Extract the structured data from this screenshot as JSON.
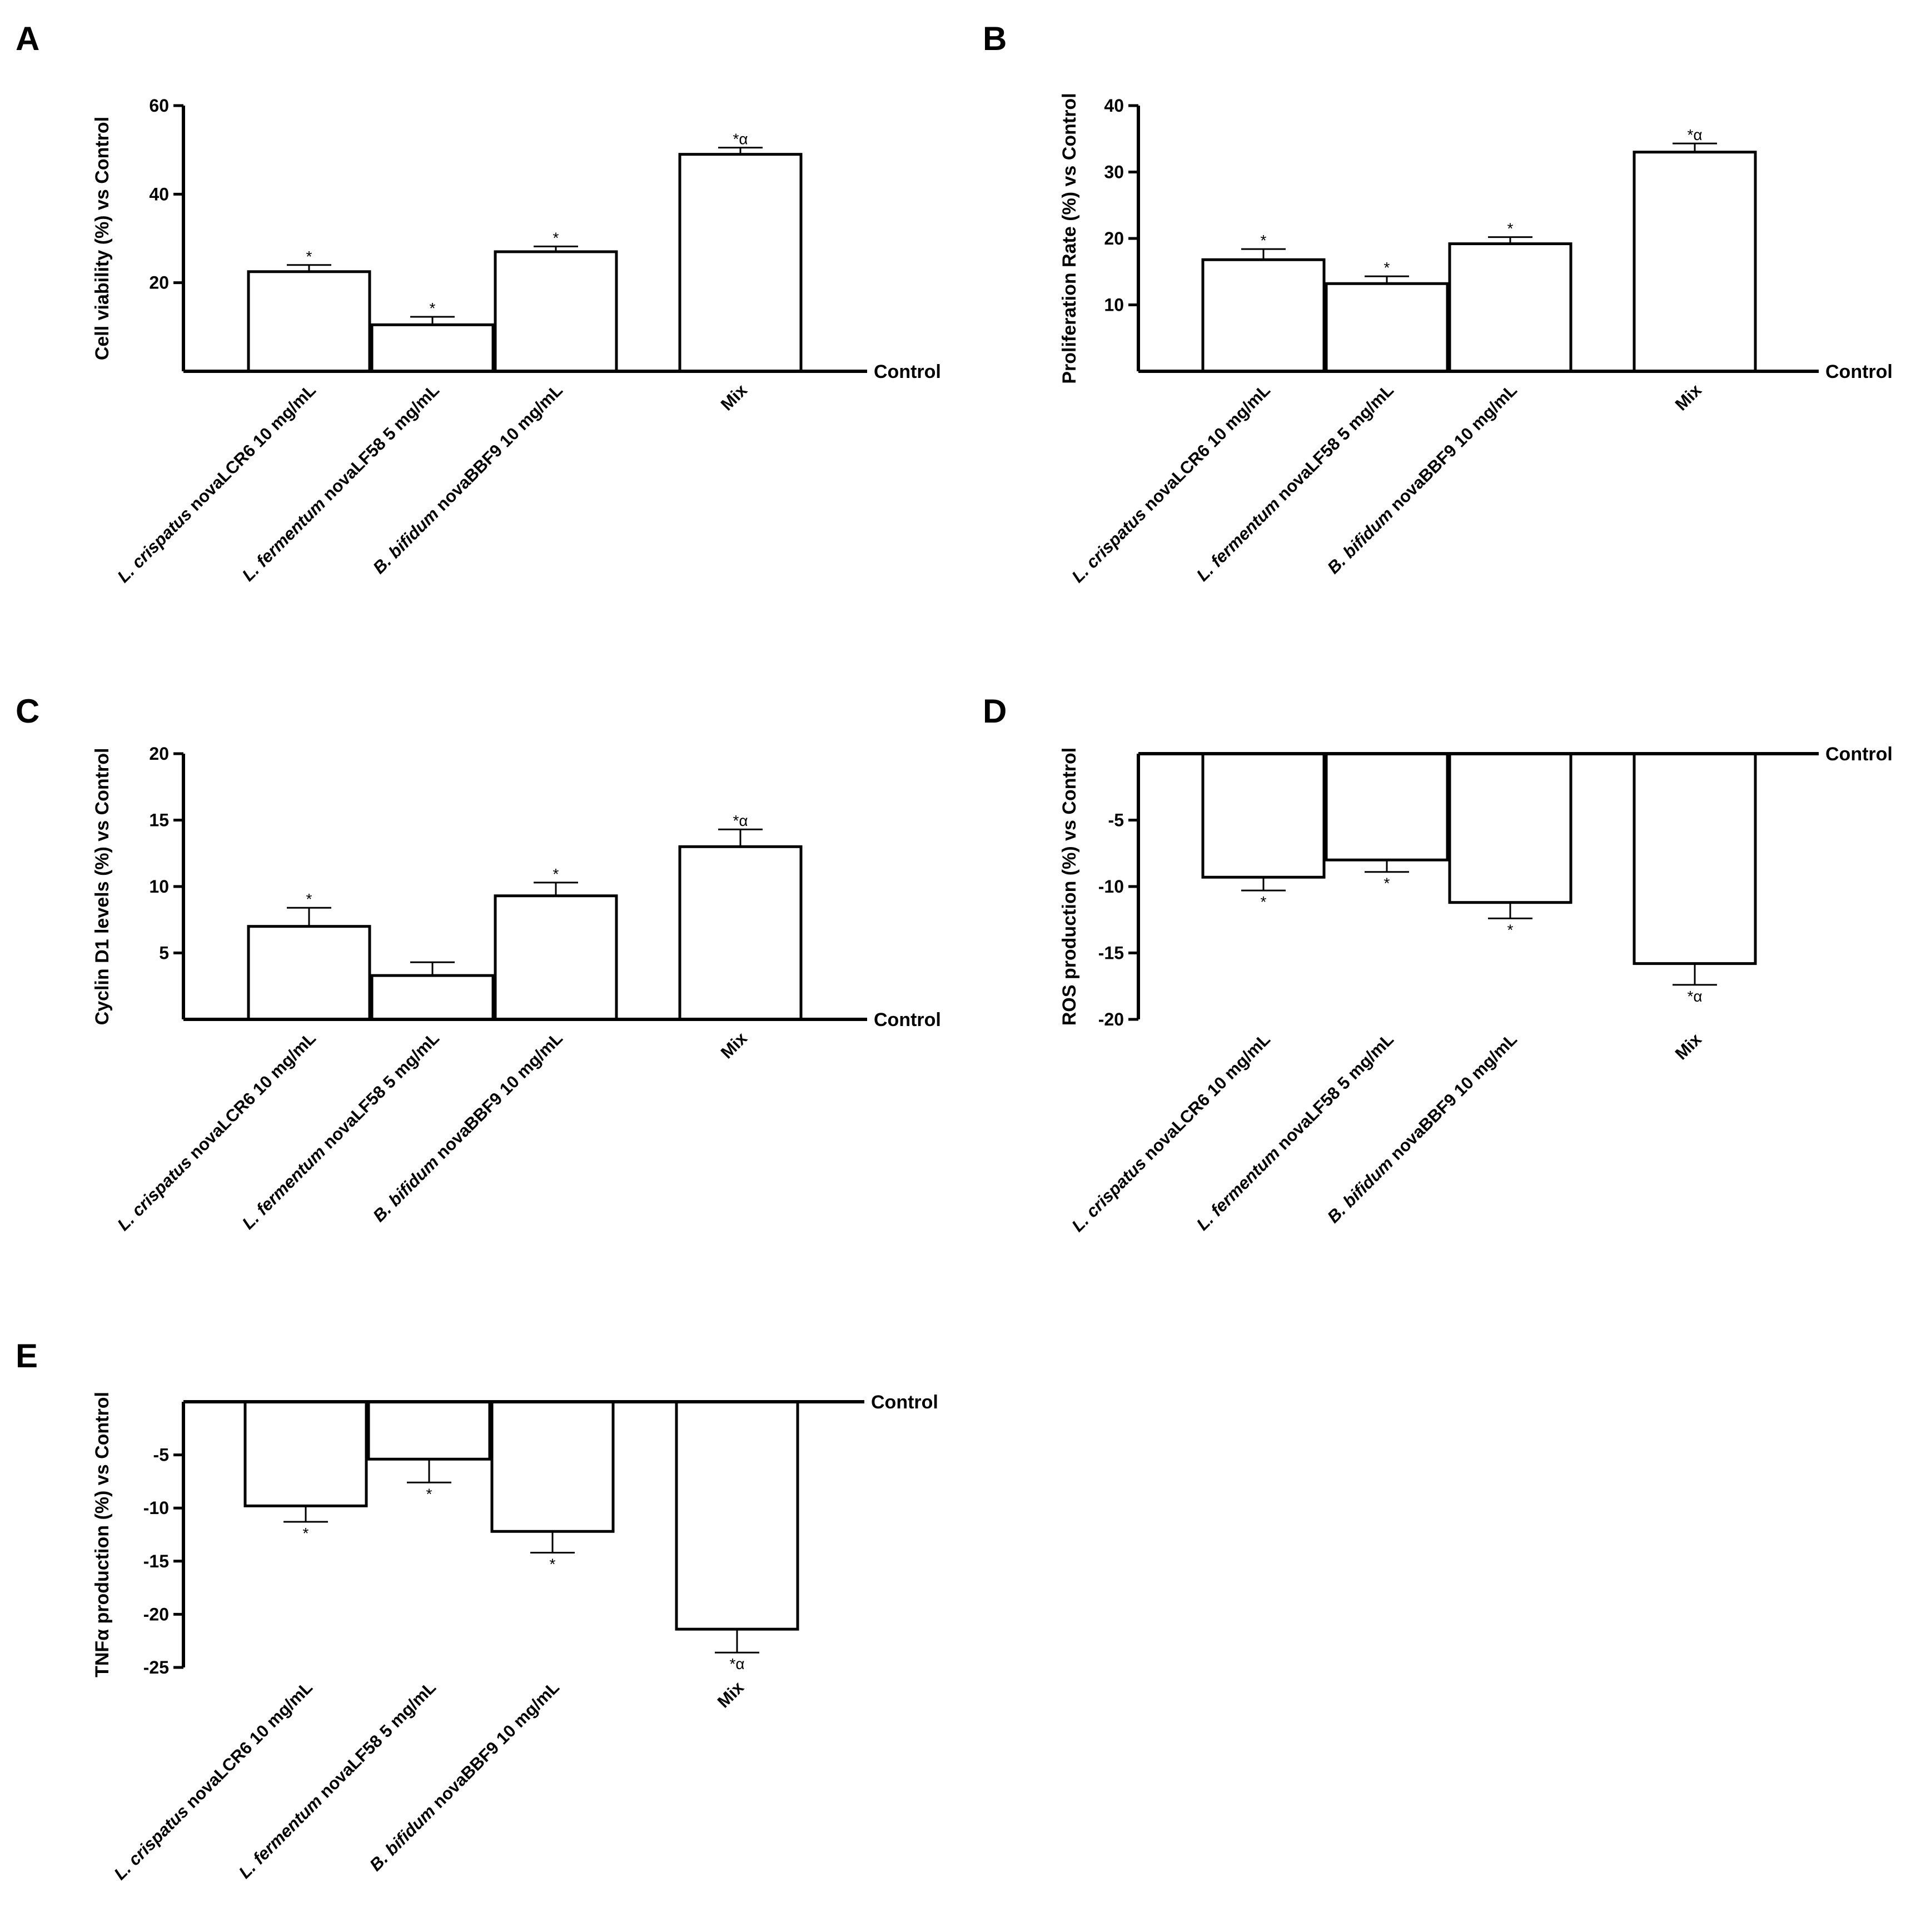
{
  "chart_data": [
    {
      "panel": "A",
      "type": "bar",
      "ylabel": "Cell viability (%) vs Control",
      "baseline_label": "Control",
      "ylim": [
        0,
        60
      ],
      "yticks": [
        20,
        40,
        60
      ],
      "categories": [
        {
          "italic": "L. crispatus",
          "rest": " novaLCR6 10 mg/mL"
        },
        {
          "italic": "L. fermentum",
          "rest": " novaLF58 5 mg/mL"
        },
        {
          "italic": "B. bifidum",
          "rest": " novaBBF9 10 mg/mL"
        },
        {
          "italic": "",
          "rest": "Mix"
        }
      ],
      "values": [
        22.5,
        10.5,
        27,
        49
      ],
      "errors": [
        1.5,
        1.8,
        1.2,
        1.5
      ],
      "significance": [
        "*",
        "*",
        "*",
        "*α"
      ]
    },
    {
      "panel": "B",
      "type": "bar",
      "ylabel": "Proliferation Rate (%) vs Control",
      "baseline_label": "Control",
      "ylim": [
        0,
        40
      ],
      "yticks": [
        10,
        20,
        30,
        40
      ],
      "categories": [
        {
          "italic": "L. crispatus",
          "rest": " novaLCR6 10 mg/mL"
        },
        {
          "italic": "L. fermentum",
          "rest": " novaLF58 5 mg/mL"
        },
        {
          "italic": "B. bifidum",
          "rest": " novaBBF9 10 mg/mL"
        },
        {
          "italic": "",
          "rest": "Mix"
        }
      ],
      "values": [
        16.8,
        13.2,
        19.2,
        33
      ],
      "errors": [
        1.6,
        1.1,
        1.0,
        1.3
      ],
      "significance": [
        "*",
        "*",
        "*",
        "*α"
      ]
    },
    {
      "panel": "C",
      "type": "bar",
      "ylabel": "Cyclin D1 levels (%) vs Control",
      "baseline_label": "Control",
      "ylim": [
        0,
        20
      ],
      "yticks": [
        5,
        10,
        15,
        20
      ],
      "categories": [
        {
          "italic": "L. crispatus",
          "rest": " novaLCR6 10 mg/mL"
        },
        {
          "italic": "L. fermentum",
          "rest": " novaLF58 5 mg/mL"
        },
        {
          "italic": "B. bifidum",
          "rest": " novaBBF9 10 mg/mL"
        },
        {
          "italic": "",
          "rest": "Mix"
        }
      ],
      "values": [
        7,
        3.3,
        9.3,
        13
      ],
      "errors": [
        1.4,
        1.0,
        1.0,
        1.3
      ],
      "significance": [
        "*",
        "",
        "*",
        "*α"
      ]
    },
    {
      "panel": "D",
      "type": "bar",
      "ylabel": "ROS production (%) vs Control",
      "baseline_label": "Control",
      "ylim": [
        -20,
        0
      ],
      "yticks": [
        -5,
        -10,
        -15,
        -20
      ],
      "categories": [
        {
          "italic": "L. crispatus",
          "rest": " novaLCR6 10 mg/mL"
        },
        {
          "italic": "L. fermentum",
          "rest": " novaLF58 5 mg/mL"
        },
        {
          "italic": "B. bifidum",
          "rest": " novaBBF9 10 mg/mL"
        },
        {
          "italic": "",
          "rest": "Mix"
        }
      ],
      "values": [
        -9.3,
        -8,
        -11.2,
        -15.8
      ],
      "errors": [
        1.0,
        0.9,
        1.2,
        1.6
      ],
      "significance": [
        "*",
        "*",
        "*",
        "*α"
      ]
    },
    {
      "panel": "E",
      "type": "bar",
      "ylabel": "TNFα production (%) vs Control",
      "baseline_label": "Control",
      "ylim": [
        -25,
        0
      ],
      "yticks": [
        -5,
        -10,
        -15,
        -20,
        -25
      ],
      "categories": [
        {
          "italic": "L. crispatus",
          "rest": " novaLCR6 10 mg/mL"
        },
        {
          "italic": "L. fermentum",
          "rest": " novaLF58 5 mg/mL"
        },
        {
          "italic": "B. bifidum",
          "rest": " novaBBF9 10 mg/mL"
        },
        {
          "italic": "",
          "rest": "Mix"
        }
      ],
      "values": [
        -9.8,
        -5.4,
        -12.2,
        -21.4
      ],
      "errors": [
        1.5,
        2.2,
        2.0,
        2.2
      ],
      "significance": [
        "*",
        "*",
        "*",
        "*α"
      ]
    }
  ]
}
